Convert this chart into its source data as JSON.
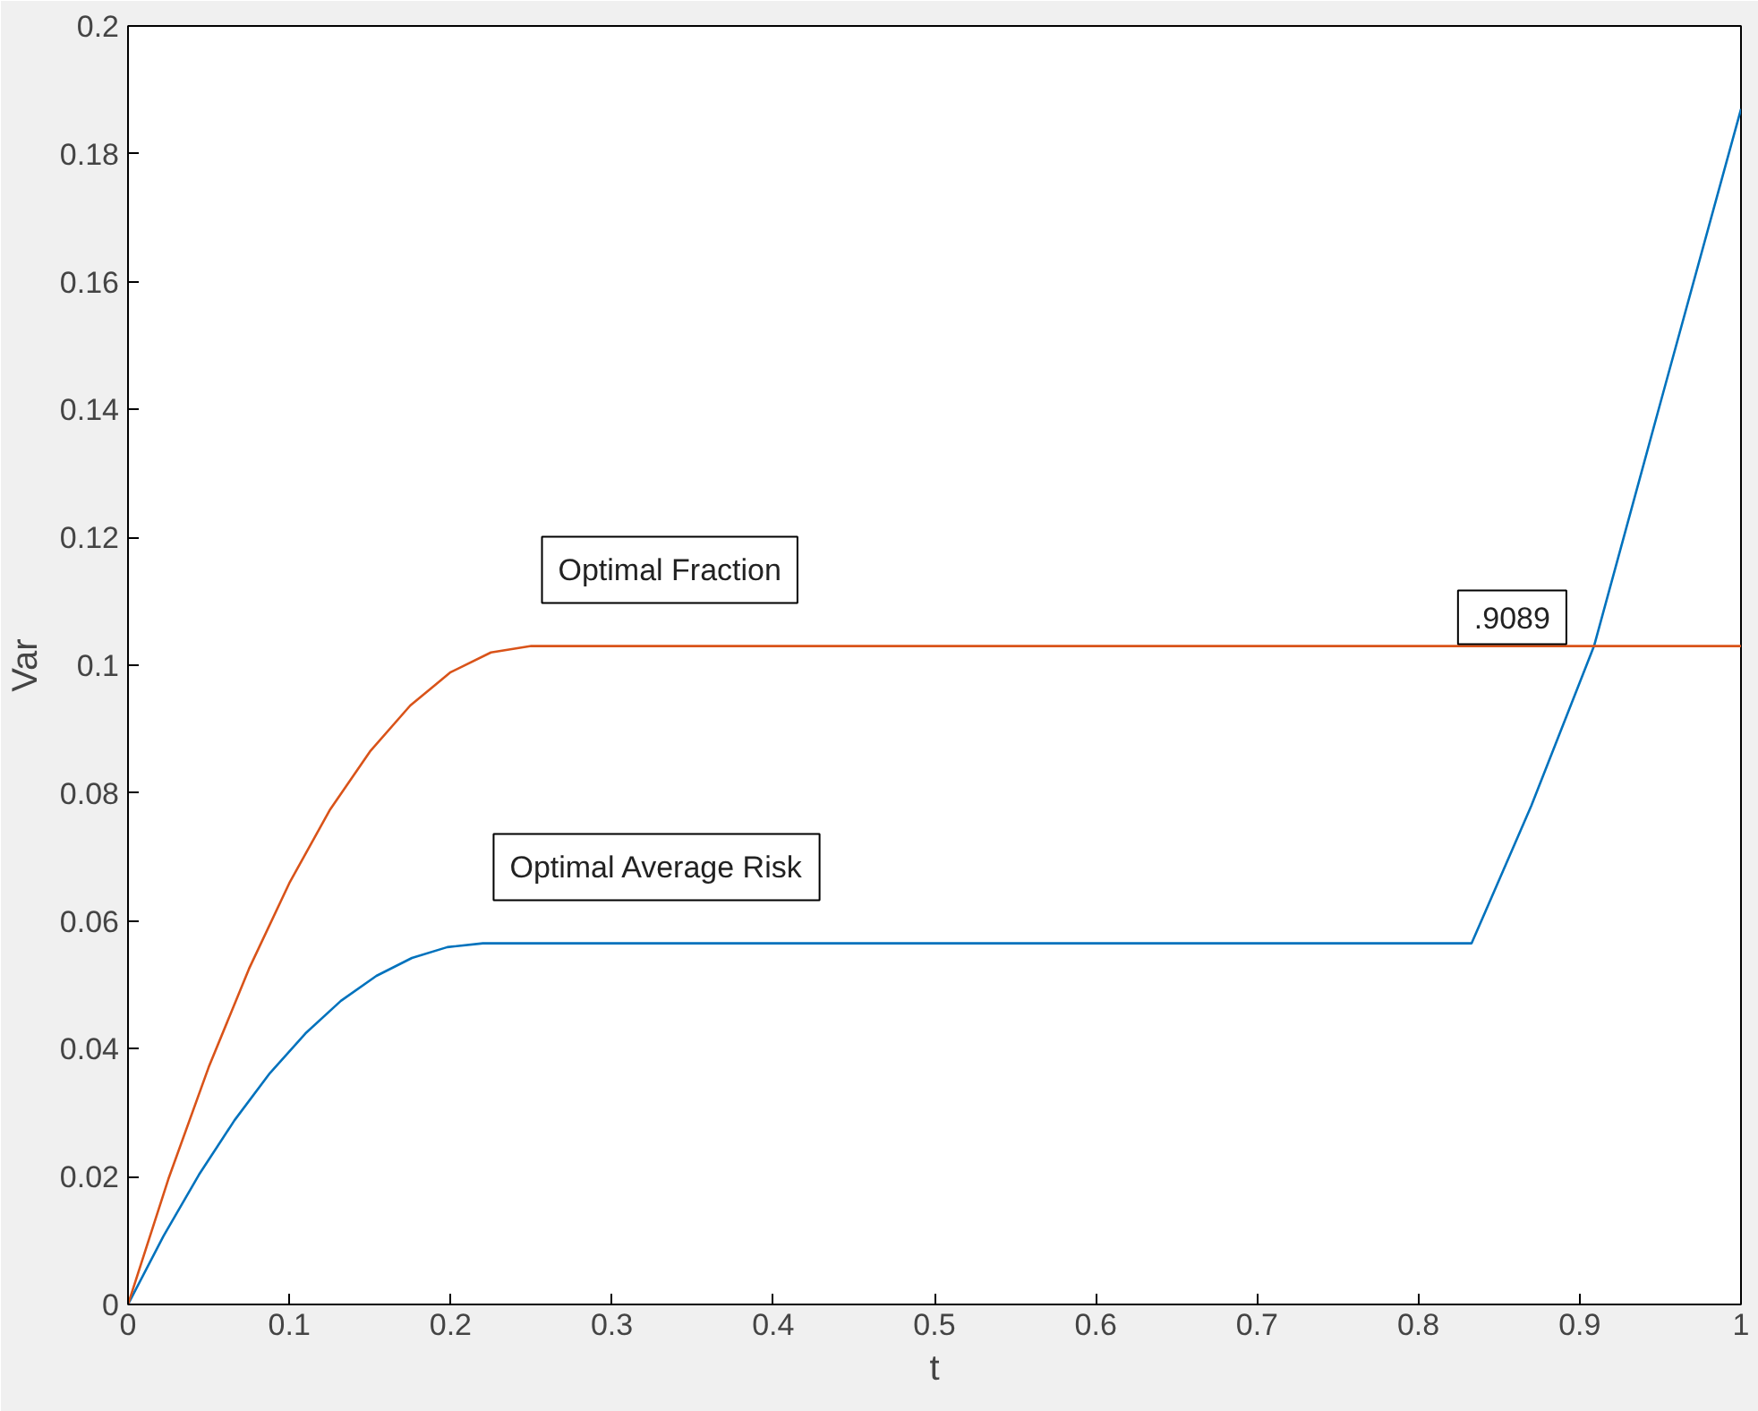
{
  "chart_data": {
    "type": "line",
    "xlabel": "t",
    "ylabel": "Var",
    "xlim": [
      0,
      1
    ],
    "ylim": [
      0,
      0.2
    ],
    "xticks": [
      0,
      0.1,
      0.2,
      0.3,
      0.4,
      0.5,
      0.6,
      0.7,
      0.8,
      0.9,
      1
    ],
    "yticks": [
      0,
      0.02,
      0.04,
      0.06,
      0.08,
      0.1,
      0.12,
      0.14,
      0.16,
      0.18,
      0.2
    ],
    "line_style": "solid",
    "series": [
      {
        "name": "Optimal Average Risk",
        "color": "#0072bd",
        "x": [
          0,
          0.022,
          0.044,
          0.066,
          0.088,
          0.11,
          0.132,
          0.154,
          0.176,
          0.198,
          0.22,
          0.833,
          0.87,
          0.9089,
          0.95,
          1.0
        ],
        "values": [
          0,
          0.0107,
          0.0203,
          0.0288,
          0.0362,
          0.0424,
          0.0475,
          0.0514,
          0.0542,
          0.0559,
          0.0565,
          0.0565,
          0.078,
          0.103,
          0.141,
          0.187
        ]
      },
      {
        "name": "Optimal Fraction",
        "color": "#d95319",
        "x": [
          0,
          0.025,
          0.05,
          0.075,
          0.1,
          0.125,
          0.15,
          0.175,
          0.2,
          0.225,
          0.25,
          1.0
        ],
        "values": [
          0,
          0.0196,
          0.0371,
          0.0525,
          0.0659,
          0.0773,
          0.0865,
          0.0937,
          0.0989,
          0.102,
          0.103,
          0.103
        ]
      }
    ],
    "annotations": [
      {
        "text": ".9089",
        "x": 0.9089,
        "y": 0.103
      }
    ]
  }
}
